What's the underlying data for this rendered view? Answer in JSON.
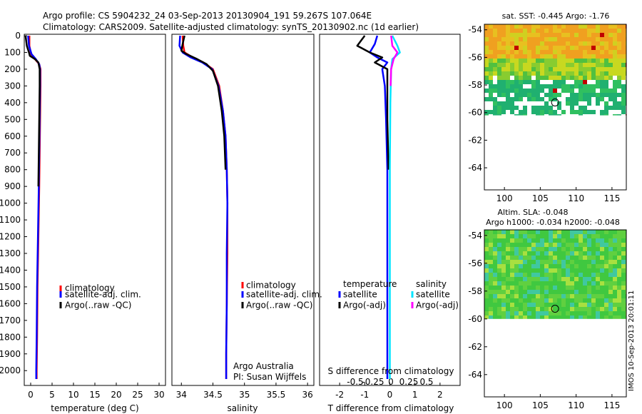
{
  "header": {
    "line1": "Argo profile: CS 5904232_24 03-Sep-2013 20130904_191 59.267S 107.064E",
    "line2": "Climatology: CARS2009. Satellite-adjusted climatology: synTS_20130902.nc (1d earlier)"
  },
  "colors": {
    "climatology": "#ff0000",
    "satellite": "#0000ff",
    "argo": "#000000",
    "sal_satellite": "#00e5ff",
    "sal_argo": "#ff00ff"
  },
  "chart_data": [
    {
      "id": "temperature",
      "type": "line",
      "xlabel": "temperature (deg C)",
      "xticks": [
        0,
        5,
        10,
        15,
        20,
        25,
        30
      ],
      "xlim": [
        -1.5,
        31.5
      ],
      "ylim": [
        0,
        2080
      ],
      "yticks": [
        0,
        100,
        200,
        300,
        400,
        500,
        600,
        700,
        800,
        900,
        1000,
        1100,
        1200,
        1300,
        1400,
        1500,
        1600,
        1700,
        1800,
        1900,
        2000
      ],
      "legend": [
        "climatology",
        "satellite-adj. clim.",
        "Argo(..raw -QC)"
      ],
      "series": [
        {
          "name": "climatology",
          "color": "#ff0000",
          "points": [
            [
              -0.3,
              0
            ],
            [
              -0.3,
              60
            ],
            [
              0.1,
              110
            ],
            [
              1.0,
              140
            ],
            [
              2.0,
              170
            ],
            [
              2.3,
              200
            ],
            [
              2.3,
              300
            ],
            [
              2.2,
              500
            ],
            [
              2.1,
              700
            ],
            [
              2.0,
              900
            ],
            [
              1.8,
              1200
            ],
            [
              1.6,
              1500
            ],
            [
              1.5,
              1800
            ],
            [
              1.4,
              2000
            ],
            [
              1.4,
              2050
            ]
          ]
        },
        {
          "name": "satellite-adj. clim.",
          "color": "#0000ff",
          "points": [
            [
              -0.6,
              0
            ],
            [
              -0.4,
              60
            ],
            [
              0.2,
              110
            ],
            [
              1.2,
              140
            ],
            [
              2.0,
              170
            ],
            [
              2.2,
              200
            ],
            [
              2.2,
              300
            ],
            [
              2.1,
              500
            ],
            [
              2.0,
              700
            ],
            [
              1.9,
              900
            ],
            [
              1.7,
              1200
            ],
            [
              1.5,
              1500
            ],
            [
              1.4,
              1800
            ],
            [
              1.3,
              2000
            ],
            [
              1.3,
              2050
            ]
          ]
        },
        {
          "name": "Argo(..raw -QC)",
          "color": "#000000",
          "points": [
            [
              -1.2,
              0
            ],
            [
              -0.9,
              60
            ],
            [
              -0.4,
              100
            ],
            [
              -0.2,
              120
            ],
            [
              1.0,
              140
            ],
            [
              1.8,
              160
            ],
            [
              2.1,
              200
            ],
            [
              2.1,
              300
            ],
            [
              2.0,
              500
            ],
            [
              1.9,
              700
            ],
            [
              1.8,
              900
            ]
          ]
        }
      ]
    },
    {
      "id": "salinity",
      "type": "line",
      "xlabel": "salinity",
      "xticks": [
        34,
        34.5,
        35,
        35.5,
        36
      ],
      "xticklabels": [
        "34",
        "34.5",
        "35",
        "35.5",
        "36"
      ],
      "xlim": [
        33.85,
        36.1
      ],
      "ylim": [
        0,
        2080
      ],
      "legend": [
        "climatology",
        "satellite-adj. clim.",
        "Argo(..raw -QC)"
      ],
      "series": [
        {
          "name": "climatology",
          "color": "#ff0000",
          "points": [
            [
              34.02,
              0
            ],
            [
              34.03,
              60
            ],
            [
              34.05,
              100
            ],
            [
              34.18,
              130
            ],
            [
              34.35,
              160
            ],
            [
              34.5,
              200
            ],
            [
              34.6,
              300
            ],
            [
              34.66,
              450
            ],
            [
              34.7,
              600
            ],
            [
              34.72,
              800
            ],
            [
              34.73,
              1000
            ],
            [
              34.73,
              1300
            ],
            [
              34.72,
              1600
            ],
            [
              34.71,
              1900
            ],
            [
              34.71,
              2050
            ]
          ]
        },
        {
          "name": "satellite-adj. clim.",
          "color": "#0000ff",
          "points": [
            [
              33.98,
              0
            ],
            [
              33.97,
              60
            ],
            [
              34.02,
              100
            ],
            [
              34.15,
              130
            ],
            [
              34.33,
              160
            ],
            [
              34.49,
              200
            ],
            [
              34.59,
              300
            ],
            [
              34.66,
              450
            ],
            [
              34.7,
              600
            ],
            [
              34.72,
              800
            ],
            [
              34.73,
              1000
            ],
            [
              34.72,
              1300
            ],
            [
              34.72,
              1600
            ],
            [
              34.71,
              1900
            ],
            [
              34.71,
              2050
            ]
          ]
        },
        {
          "name": "Argo(..raw -QC)",
          "color": "#000000",
          "points": [
            [
              34.05,
              0
            ],
            [
              34.02,
              50
            ],
            [
              34.0,
              90
            ],
            [
              34.08,
              110
            ],
            [
              34.25,
              140
            ],
            [
              34.4,
              170
            ],
            [
              34.5,
              210
            ],
            [
              34.58,
              300
            ],
            [
              34.64,
              450
            ],
            [
              34.68,
              600
            ],
            [
              34.7,
              800
            ]
          ]
        }
      ]
    },
    {
      "id": "difference",
      "type": "line",
      "xlabel": "T difference from climatology",
      "title": "S difference from climatology",
      "xticks": [
        -2,
        -1,
        0,
        1,
        2
      ],
      "xlim": [
        -2.8,
        2.8
      ],
      "sticks": [
        -0.5,
        -0.25,
        0,
        0.25,
        0.5
      ],
      "sticklabels": [
        "-0.5",
        "-0.25",
        "0",
        "0.25",
        "0.5"
      ],
      "ylim": [
        0,
        2080
      ],
      "legend_temperature": {
        "title": "temperature",
        "items": [
          "satellite",
          "Argo(-adj)"
        ]
      },
      "legend_salinity": {
        "title": "salinity",
        "items": [
          "satellite",
          "Argo(-adj)"
        ]
      },
      "series": [
        {
          "name": "temperature satellite",
          "color": "#0000ff",
          "points": [
            [
              -0.5,
              0
            ],
            [
              -0.6,
              50
            ],
            [
              -0.8,
              100
            ],
            [
              -0.5,
              130
            ],
            [
              -0.1,
              160
            ],
            [
              -0.3,
              200
            ],
            [
              -0.2,
              300
            ],
            [
              -0.15,
              500
            ],
            [
              -0.1,
              800
            ],
            [
              -0.1,
              1200
            ],
            [
              -0.1,
              1600
            ],
            [
              -0.1,
              2050
            ]
          ]
        },
        {
          "name": "temperature Argo(-adj)",
          "color": "#000000",
          "points": [
            [
              -1.0,
              0
            ],
            [
              -1.3,
              60
            ],
            [
              -0.8,
              100
            ],
            [
              -0.3,
              130
            ],
            [
              -0.6,
              160
            ],
            [
              -0.1,
              200
            ],
            [
              -0.1,
              300
            ],
            [
              -0.1,
              500
            ],
            [
              -0.05,
              800
            ]
          ]
        },
        {
          "name": "salinity satellite",
          "color": "#00e5ff",
          "points": [
            [
              0.1,
              0
            ],
            [
              0.3,
              60
            ],
            [
              0.4,
              100
            ],
            [
              0.1,
              140
            ],
            [
              0.05,
              200
            ],
            [
              0.02,
              400
            ],
            [
              0.0,
              800
            ],
            [
              0.0,
              1200
            ],
            [
              0.0,
              1600
            ],
            [
              0.0,
              2050
            ]
          ]
        },
        {
          "name": "salinity Argo(-adj)",
          "color": "#ff00ff",
          "points": [
            [
              0.05,
              0
            ],
            [
              0.1,
              60
            ],
            [
              0.3,
              100
            ],
            [
              0.15,
              140
            ],
            [
              0.05,
              200
            ],
            [
              0.03,
              300
            ]
          ]
        }
      ]
    },
    {
      "id": "sst-map",
      "type": "heatmap",
      "title": "sat. SST: -0.445 Argo: -1.76",
      "xticks": [
        100,
        105,
        110,
        115
      ],
      "yticks": [
        -54,
        -56,
        -58,
        -60,
        -62,
        -64
      ],
      "xlim": [
        97.2,
        117.0
      ],
      "ylim": [
        -65.6,
        -53.6
      ],
      "marker": {
        "lon": 107.064,
        "lat": -59.267
      }
    },
    {
      "id": "sla-map",
      "type": "heatmap",
      "title": "Altim. SLA: -0.048",
      "subtitle": "Argo h1000: -0.034 h2000: -0.048",
      "xticks": [
        100,
        105,
        110,
        115
      ],
      "yticks": [
        -54,
        -56,
        -58,
        -60,
        -62,
        -64
      ],
      "xlim": [
        97.2,
        117.0
      ],
      "ylim": [
        -65.6,
        -53.6
      ],
      "marker": {
        "lon": 107.064,
        "lat": -59.267
      }
    }
  ],
  "annotations": {
    "institution": "Argo Australia",
    "pi": "PI: Susan Wijffels",
    "stamp": "IMOS 10-Sep-2013 20:01:11"
  }
}
